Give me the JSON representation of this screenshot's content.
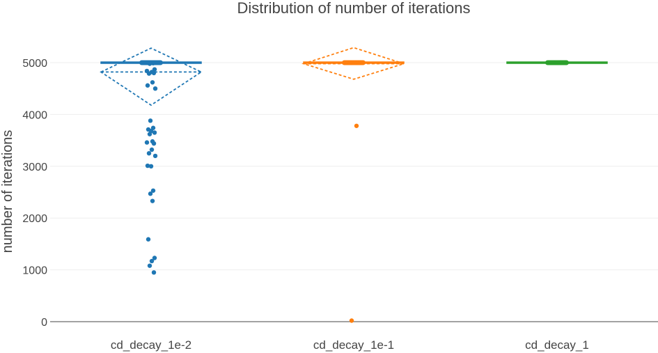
{
  "chart_data": {
    "type": "box",
    "title": "Distribution of number of iterations",
    "xlabel": "",
    "ylabel": "number of iterations",
    "ylim": [
      0,
      5500
    ],
    "yticks": [
      0,
      1000,
      2000,
      3000,
      4000,
      5000
    ],
    "grid": true,
    "categories": [
      "cd_decay_1e-2",
      "cd_decay_1e-1",
      "cd_decay_1"
    ],
    "series": [
      {
        "category": "cd_decay_1e-2",
        "color": "#1f77b4",
        "box": {
          "q1": 4990,
          "median": 5000,
          "q3": 5000,
          "lower_whisker": 4990,
          "upper_whisker": 5000
        },
        "mean": 4820,
        "sd_low": 4180,
        "sd_high": 5280,
        "points": [
          5000,
          4990,
          4980,
          4870,
          4840,
          4820,
          4800,
          4790,
          4620,
          4560,
          4500,
          3880,
          3740,
          3710,
          3680,
          3650,
          3620,
          3480,
          3460,
          3440,
          3320,
          3250,
          3200,
          3010,
          3000,
          2530,
          2470,
          2330,
          1590,
          1230,
          1170,
          1080,
          950
        ]
      },
      {
        "category": "cd_decay_1e-1",
        "color": "#ff7f0e",
        "box": {
          "q1": 5000,
          "median": 5000,
          "q3": 5000,
          "lower_whisker": 5000,
          "upper_whisker": 5000
        },
        "mean": 4980,
        "sd_low": 4680,
        "sd_high": 5290,
        "points": [
          5000,
          5000,
          5000,
          5000,
          5000,
          5000,
          3780,
          20
        ]
      },
      {
        "category": "cd_decay_1",
        "color": "#2ca02c",
        "box": {
          "q1": 5000,
          "median": 5000,
          "q3": 5000,
          "lower_whisker": 5000,
          "upper_whisker": 5000
        },
        "points": [
          5000,
          5000,
          5000,
          5000,
          5000,
          5000
        ]
      }
    ]
  }
}
